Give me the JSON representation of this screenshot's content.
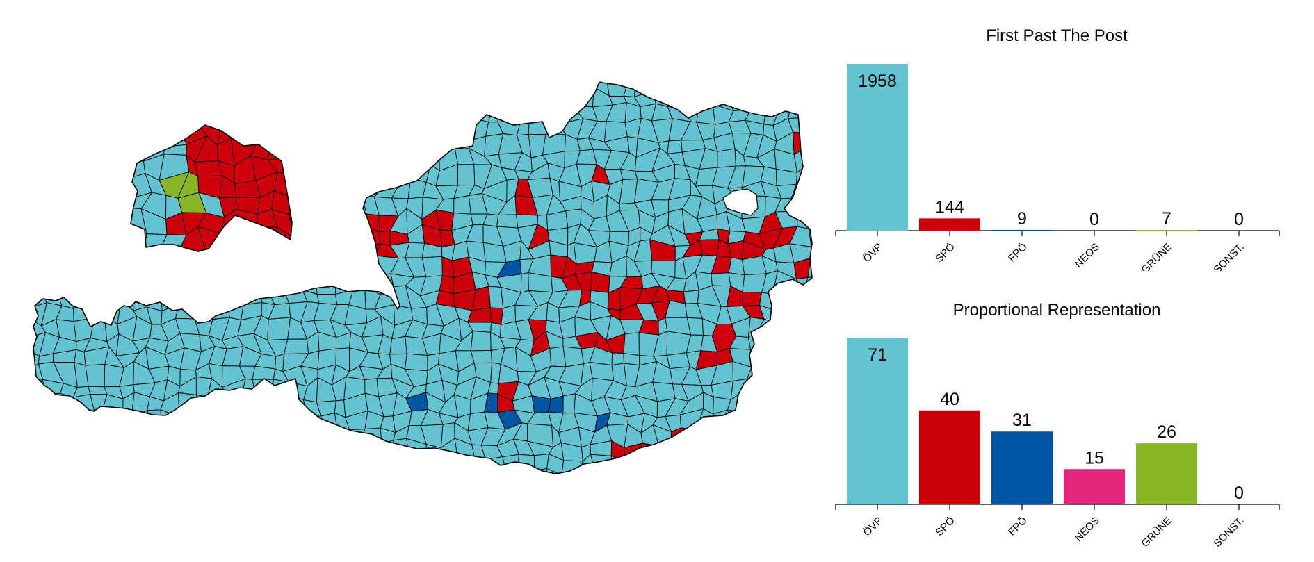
{
  "colors": {
    "OEVP": "#63c3d0",
    "SPOE": "#ce000c",
    "FPOE": "#0056a2",
    "NEOS": "#e3257b",
    "GRUENE": "#88b626",
    "SONST": "#999999",
    "border": "#000000"
  },
  "map": {
    "description_icon": "map-of-austria-municipalities"
  },
  "chart_data": [
    {
      "type": "bar",
      "title": "First Past The Post",
      "categories": [
        "ÖVP",
        "SPÖ",
        "FPÖ",
        "NEOS",
        "GRÜNE",
        "SONST."
      ],
      "values": [
        1958,
        144,
        9,
        0,
        7,
        0
      ],
      "colors": [
        "#63c3d0",
        "#ce000c",
        "#0056a2",
        "#e3257b",
        "#88b626",
        "#999999"
      ],
      "ylim": [
        0,
        1958
      ],
      "xlabel": "",
      "ylabel": "",
      "grid": false
    },
    {
      "type": "bar",
      "title": "Proportional Representation",
      "categories": [
        "ÖVP",
        "SPÖ",
        "FPÖ",
        "NEOS",
        "GRÜNE",
        "SONST."
      ],
      "values": [
        71,
        40,
        31,
        15,
        26,
        0
      ],
      "colors": [
        "#63c3d0",
        "#ce000c",
        "#0056a2",
        "#e3257b",
        "#88b626",
        "#999999"
      ],
      "ylim": [
        0,
        71
      ],
      "xlabel": "",
      "ylabel": "",
      "grid": false
    }
  ]
}
